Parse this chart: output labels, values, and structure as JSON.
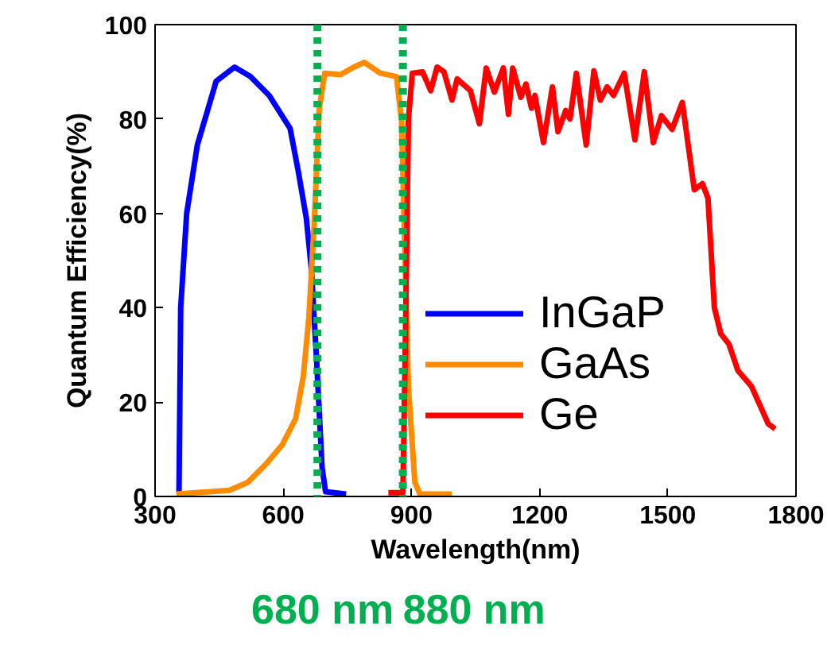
{
  "chart_data": {
    "type": "line",
    "xlabel": "Wavelength(nm)",
    "ylabel": "Quantum Efficiency(%)",
    "xlim": [
      300,
      1800
    ],
    "xticks": [
      300,
      600,
      900,
      1200,
      1500,
      1800
    ],
    "ylim": [
      0,
      100
    ],
    "yticks": [
      0,
      20,
      40,
      60,
      80,
      100
    ],
    "grid": false,
    "legend": "center right",
    "marker": "none",
    "line_style": "solid",
    "series": [
      {
        "name": "InGaP",
        "color": "#0000ff",
        "x": [
          356,
          360,
          374,
          399,
          443,
          486,
          523,
          567,
          616,
          635,
          654,
          666,
          678,
          691,
          699,
          747
        ],
        "values": [
          0.8,
          40,
          60,
          74.5,
          88,
          91,
          89,
          85,
          78,
          69,
          59,
          48,
          29,
          6,
          1,
          0.5
        ]
      },
      {
        "name": "GaAs",
        "color": "#ff8c00",
        "x": [
          350,
          474,
          517,
          561,
          598,
          629,
          647,
          660,
          672,
          684,
          697,
          734,
          765,
          790,
          827,
          865,
          877,
          883,
          893,
          908,
          920,
          995
        ],
        "values": [
          0.5,
          1.3,
          3,
          7,
          11,
          16.5,
          25.5,
          38,
          57,
          82,
          89.7,
          89.4,
          91,
          92,
          89.7,
          89,
          79.5,
          57,
          23,
          3,
          0.5,
          0.5
        ]
      },
      {
        "name": "Ge",
        "color": "#ff0000",
        "x": [
          846,
          880,
          887,
          893,
          902,
          926,
          945,
          960,
          976,
          995,
          1007,
          1038,
          1059,
          1075,
          1094,
          1115,
          1127,
          1137,
          1156,
          1168,
          1181,
          1189,
          1209,
          1230,
          1243,
          1261,
          1271,
          1286,
          1309,
          1327,
          1342,
          1358,
          1373,
          1398,
          1423,
          1445,
          1466,
          1485,
          1510,
          1534,
          1562,
          1581,
          1594,
          1609,
          1624,
          1643,
          1664,
          1696,
          1735,
          1751
        ],
        "values": [
          0.8,
          0.8,
          40,
          80,
          89.7,
          90,
          86,
          91,
          90,
          84,
          88.5,
          86,
          79,
          90.8,
          85.7,
          90.8,
          81,
          90.8,
          84.6,
          87.4,
          82.3,
          85,
          75,
          86.8,
          77.3,
          81.8,
          80,
          89.7,
          74.5,
          90.2,
          84,
          86.8,
          85,
          89.7,
          75.6,
          90,
          75,
          80.7,
          77.8,
          83.5,
          65,
          66.3,
          63.2,
          40,
          34.5,
          32.3,
          26.7,
          23.3,
          15.4,
          14.3
        ]
      }
    ],
    "ref_lines": [
      {
        "axis": "x",
        "value": 680,
        "label": "680 nm",
        "color": "#00b050",
        "line_style": "dotted"
      },
      {
        "axis": "x",
        "value": 880,
        "label": "880 nm",
        "color": "#00b050",
        "line_style": "dotted"
      }
    ]
  }
}
